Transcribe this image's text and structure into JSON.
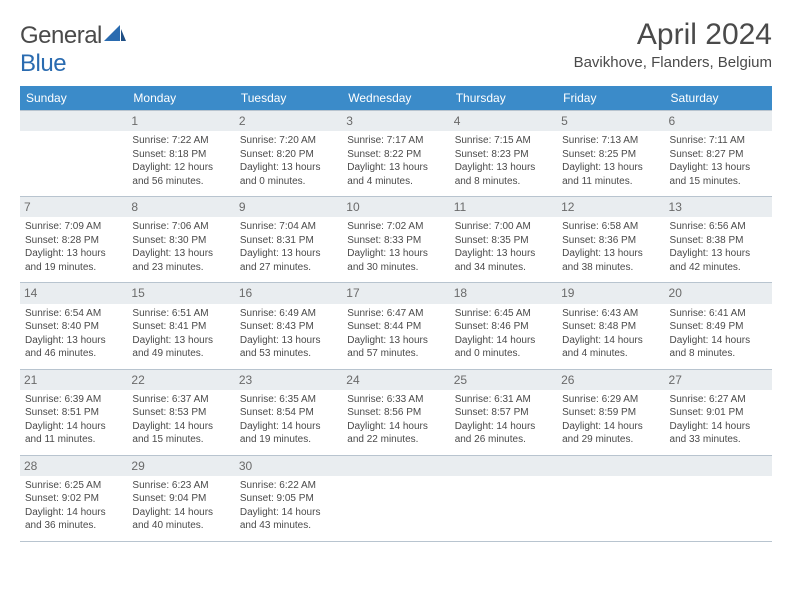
{
  "brand": {
    "part1": "General",
    "part2": "Blue"
  },
  "title": "April 2024",
  "location": "Bavikhove, Flanders, Belgium",
  "colors": {
    "header_bg": "#3b8bc9",
    "header_text": "#ffffff",
    "daynum_bg": "#e9edf0",
    "border": "#b8c4cf",
    "text": "#4a4a4a"
  },
  "weekdays": [
    "Sunday",
    "Monday",
    "Tuesday",
    "Wednesday",
    "Thursday",
    "Friday",
    "Saturday"
  ],
  "weeks": [
    [
      {
        "n": "",
        "sr": "",
        "ss": "",
        "dl": ""
      },
      {
        "n": "1",
        "sr": "Sunrise: 7:22 AM",
        "ss": "Sunset: 8:18 PM",
        "dl": "Daylight: 12 hours and 56 minutes."
      },
      {
        "n": "2",
        "sr": "Sunrise: 7:20 AM",
        "ss": "Sunset: 8:20 PM",
        "dl": "Daylight: 13 hours and 0 minutes."
      },
      {
        "n": "3",
        "sr": "Sunrise: 7:17 AM",
        "ss": "Sunset: 8:22 PM",
        "dl": "Daylight: 13 hours and 4 minutes."
      },
      {
        "n": "4",
        "sr": "Sunrise: 7:15 AM",
        "ss": "Sunset: 8:23 PM",
        "dl": "Daylight: 13 hours and 8 minutes."
      },
      {
        "n": "5",
        "sr": "Sunrise: 7:13 AM",
        "ss": "Sunset: 8:25 PM",
        "dl": "Daylight: 13 hours and 11 minutes."
      },
      {
        "n": "6",
        "sr": "Sunrise: 7:11 AM",
        "ss": "Sunset: 8:27 PM",
        "dl": "Daylight: 13 hours and 15 minutes."
      }
    ],
    [
      {
        "n": "7",
        "sr": "Sunrise: 7:09 AM",
        "ss": "Sunset: 8:28 PM",
        "dl": "Daylight: 13 hours and 19 minutes."
      },
      {
        "n": "8",
        "sr": "Sunrise: 7:06 AM",
        "ss": "Sunset: 8:30 PM",
        "dl": "Daylight: 13 hours and 23 minutes."
      },
      {
        "n": "9",
        "sr": "Sunrise: 7:04 AM",
        "ss": "Sunset: 8:31 PM",
        "dl": "Daylight: 13 hours and 27 minutes."
      },
      {
        "n": "10",
        "sr": "Sunrise: 7:02 AM",
        "ss": "Sunset: 8:33 PM",
        "dl": "Daylight: 13 hours and 30 minutes."
      },
      {
        "n": "11",
        "sr": "Sunrise: 7:00 AM",
        "ss": "Sunset: 8:35 PM",
        "dl": "Daylight: 13 hours and 34 minutes."
      },
      {
        "n": "12",
        "sr": "Sunrise: 6:58 AM",
        "ss": "Sunset: 8:36 PM",
        "dl": "Daylight: 13 hours and 38 minutes."
      },
      {
        "n": "13",
        "sr": "Sunrise: 6:56 AM",
        "ss": "Sunset: 8:38 PM",
        "dl": "Daylight: 13 hours and 42 minutes."
      }
    ],
    [
      {
        "n": "14",
        "sr": "Sunrise: 6:54 AM",
        "ss": "Sunset: 8:40 PM",
        "dl": "Daylight: 13 hours and 46 minutes."
      },
      {
        "n": "15",
        "sr": "Sunrise: 6:51 AM",
        "ss": "Sunset: 8:41 PM",
        "dl": "Daylight: 13 hours and 49 minutes."
      },
      {
        "n": "16",
        "sr": "Sunrise: 6:49 AM",
        "ss": "Sunset: 8:43 PM",
        "dl": "Daylight: 13 hours and 53 minutes."
      },
      {
        "n": "17",
        "sr": "Sunrise: 6:47 AM",
        "ss": "Sunset: 8:44 PM",
        "dl": "Daylight: 13 hours and 57 minutes."
      },
      {
        "n": "18",
        "sr": "Sunrise: 6:45 AM",
        "ss": "Sunset: 8:46 PM",
        "dl": "Daylight: 14 hours and 0 minutes."
      },
      {
        "n": "19",
        "sr": "Sunrise: 6:43 AM",
        "ss": "Sunset: 8:48 PM",
        "dl": "Daylight: 14 hours and 4 minutes."
      },
      {
        "n": "20",
        "sr": "Sunrise: 6:41 AM",
        "ss": "Sunset: 8:49 PM",
        "dl": "Daylight: 14 hours and 8 minutes."
      }
    ],
    [
      {
        "n": "21",
        "sr": "Sunrise: 6:39 AM",
        "ss": "Sunset: 8:51 PM",
        "dl": "Daylight: 14 hours and 11 minutes."
      },
      {
        "n": "22",
        "sr": "Sunrise: 6:37 AM",
        "ss": "Sunset: 8:53 PM",
        "dl": "Daylight: 14 hours and 15 minutes."
      },
      {
        "n": "23",
        "sr": "Sunrise: 6:35 AM",
        "ss": "Sunset: 8:54 PM",
        "dl": "Daylight: 14 hours and 19 minutes."
      },
      {
        "n": "24",
        "sr": "Sunrise: 6:33 AM",
        "ss": "Sunset: 8:56 PM",
        "dl": "Daylight: 14 hours and 22 minutes."
      },
      {
        "n": "25",
        "sr": "Sunrise: 6:31 AM",
        "ss": "Sunset: 8:57 PM",
        "dl": "Daylight: 14 hours and 26 minutes."
      },
      {
        "n": "26",
        "sr": "Sunrise: 6:29 AM",
        "ss": "Sunset: 8:59 PM",
        "dl": "Daylight: 14 hours and 29 minutes."
      },
      {
        "n": "27",
        "sr": "Sunrise: 6:27 AM",
        "ss": "Sunset: 9:01 PM",
        "dl": "Daylight: 14 hours and 33 minutes."
      }
    ],
    [
      {
        "n": "28",
        "sr": "Sunrise: 6:25 AM",
        "ss": "Sunset: 9:02 PM",
        "dl": "Daylight: 14 hours and 36 minutes."
      },
      {
        "n": "29",
        "sr": "Sunrise: 6:23 AM",
        "ss": "Sunset: 9:04 PM",
        "dl": "Daylight: 14 hours and 40 minutes."
      },
      {
        "n": "30",
        "sr": "Sunrise: 6:22 AM",
        "ss": "Sunset: 9:05 PM",
        "dl": "Daylight: 14 hours and 43 minutes."
      },
      {
        "n": "",
        "sr": "",
        "ss": "",
        "dl": ""
      },
      {
        "n": "",
        "sr": "",
        "ss": "",
        "dl": ""
      },
      {
        "n": "",
        "sr": "",
        "ss": "",
        "dl": ""
      },
      {
        "n": "",
        "sr": "",
        "ss": "",
        "dl": ""
      }
    ]
  ]
}
